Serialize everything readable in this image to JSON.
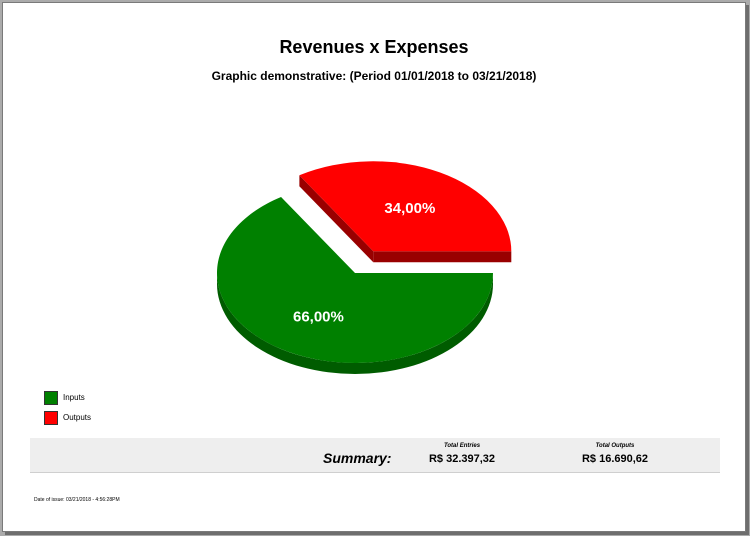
{
  "report": {
    "title": "Revenues x Expenses",
    "subtitle": "Graphic demonstrative: (Period 01/01/2018 to 03/21/2018)"
  },
  "chart_data": {
    "type": "pie",
    "title": "Revenues x Expenses",
    "subtitle": "Graphic demonstrative: (Period 01/01/2018 to 03/21/2018)",
    "categories": [
      "Inputs",
      "Outputs"
    ],
    "values": [
      66.0,
      34.0
    ],
    "data_labels": [
      "66,00%",
      "34,00%"
    ],
    "colors": [
      "#008000",
      "#ff0000"
    ],
    "legend": "bottom-left",
    "exploded": true,
    "three_d": true
  },
  "legend": {
    "items": [
      {
        "label": "Inputs",
        "color": "#008000"
      },
      {
        "label": "Outputs",
        "color": "#ff0000"
      }
    ]
  },
  "summary": {
    "label": "Summary:",
    "entries_header": "Total Entries",
    "entries_value": "R$ 32.397,32",
    "outputs_header": "Total Outputs",
    "outputs_value": "R$ 16.690,62"
  },
  "footer": {
    "date_issue": "Date of issue: 03/21/2018 - 4:56:28PM"
  }
}
